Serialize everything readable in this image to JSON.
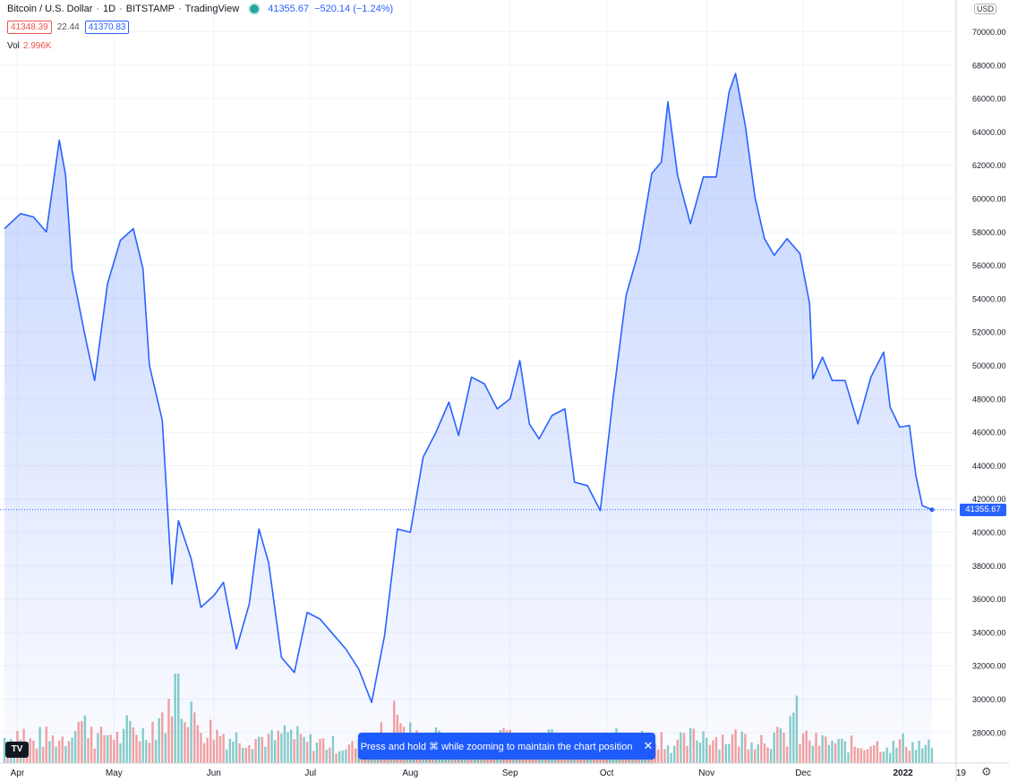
{
  "header": {
    "symbol": "Bitcoin / U.S. Dollar",
    "interval": "1D",
    "exchange": "BITSTAMP",
    "source": "TradingView",
    "last_price": "41355.67",
    "change": "−520.14 (−1.24%)",
    "bid": "41348.39",
    "spread": "22.44",
    "ask": "41370.83",
    "vol_label": "Vol",
    "vol_value": "2.996K",
    "currency": "USD",
    "price_tag": "41355.67"
  },
  "toast": {
    "message": "Press and hold ⌘ while zooming to maintain the chart position",
    "close": "✕"
  },
  "logo": "TV",
  "colors": {
    "line": "#2962ff",
    "area": "#2962ff",
    "up": "#26a69a",
    "down": "#ef5350",
    "grid": "#f0f3fa"
  },
  "chart_data": {
    "type": "area",
    "x_start": "2021-03-28",
    "x_end": "2022-01-10",
    "ylim": [
      26000,
      72000
    ],
    "grid": true,
    "ticks_y": [
      "70000.00",
      "68000.00",
      "66000.00",
      "64000.00",
      "62000.00",
      "60000.00",
      "58000.00",
      "56000.00",
      "54000.00",
      "52000.00",
      "50000.00",
      "48000.00",
      "46000.00",
      "44000.00",
      "42000.00",
      "40000.00",
      "38000.00",
      "36000.00",
      "34000.00",
      "32000.00",
      "30000.00",
      "28000.00"
    ],
    "ticks_x": [
      {
        "date": "2021-04-01",
        "label": "Apr"
      },
      {
        "date": "2021-05-01",
        "label": "May"
      },
      {
        "date": "2021-06-01",
        "label": "Jun"
      },
      {
        "date": "2021-07-01",
        "label": "Jul"
      },
      {
        "date": "2021-08-01",
        "label": "Aug"
      },
      {
        "date": "2021-09-01",
        "label": "Sep"
      },
      {
        "date": "2021-10-01",
        "label": "Oct"
      },
      {
        "date": "2021-11-01",
        "label": "Nov"
      },
      {
        "date": "2021-12-01",
        "label": "Dec"
      },
      {
        "date": "2022-01-01",
        "label": "2022"
      },
      {
        "date": "2022-01-19",
        "label": "19"
      }
    ],
    "series": [
      {
        "dates": [
          "2021-03-28",
          "2021-04-02",
          "2021-04-06",
          "2021-04-10",
          "2021-04-14",
          "2021-04-16",
          "2021-04-18",
          "2021-04-22",
          "2021-04-25",
          "2021-04-29",
          "2021-05-03",
          "2021-05-07",
          "2021-05-10",
          "2021-05-12",
          "2021-05-16",
          "2021-05-19",
          "2021-05-21",
          "2021-05-25",
          "2021-05-28",
          "2021-06-01",
          "2021-06-04",
          "2021-06-08",
          "2021-06-12",
          "2021-06-15",
          "2021-06-18",
          "2021-06-22",
          "2021-06-26",
          "2021-06-30",
          "2021-07-04",
          "2021-07-08",
          "2021-07-12",
          "2021-07-16",
          "2021-07-20",
          "2021-07-24",
          "2021-07-28",
          "2021-08-01",
          "2021-08-05",
          "2021-08-09",
          "2021-08-13",
          "2021-08-16",
          "2021-08-20",
          "2021-08-24",
          "2021-08-28",
          "2021-09-01",
          "2021-09-04",
          "2021-09-07",
          "2021-09-10",
          "2021-09-14",
          "2021-09-18",
          "2021-09-21",
          "2021-09-25",
          "2021-09-29",
          "2021-10-03",
          "2021-10-07",
          "2021-10-11",
          "2021-10-15",
          "2021-10-18",
          "2021-10-20",
          "2021-10-23",
          "2021-10-27",
          "2021-10-31",
          "2021-11-04",
          "2021-11-08",
          "2021-11-10",
          "2021-11-13",
          "2021-11-16",
          "2021-11-19",
          "2021-11-22",
          "2021-11-26",
          "2021-11-30",
          "2021-12-03",
          "2021-12-04",
          "2021-12-07",
          "2021-12-10",
          "2021-12-14",
          "2021-12-18",
          "2021-12-22",
          "2021-12-26",
          "2021-12-28",
          "2021-12-31",
          "2022-01-03",
          "2022-01-05",
          "2022-01-07",
          "2022-01-10"
        ],
        "values": [
          58200,
          59100,
          58900,
          58000,
          63500,
          61400,
          55700,
          51800,
          49100,
          54900,
          57500,
          58200,
          55800,
          50000,
          46700,
          36900,
          40700,
          38400,
          35500,
          36200,
          37000,
          33000,
          35700,
          40200,
          38200,
          32500,
          31600,
          35200,
          34800,
          33900,
          33000,
          31800,
          29800,
          33800,
          40200,
          40000,
          44500,
          46000,
          47800,
          45800,
          49300,
          48900,
          47400,
          48000,
          50300,
          46500,
          45600,
          47000,
          47400,
          43000,
          42800,
          41300,
          48100,
          54200,
          56900,
          61500,
          62200,
          65800,
          61400,
          58500,
          61300,
          61300,
          66400,
          67500,
          64400,
          60100,
          57600,
          56600,
          57600,
          56700,
          53700,
          49200,
          50500,
          49100,
          49100,
          46500,
          49300,
          50800,
          47500,
          46300,
          46400,
          43400,
          41600,
          41355.67
        ]
      }
    ],
    "volume": {
      "note": "daily volume, relative",
      "values": [
        0.3,
        0.35,
        0.25,
        0.3,
        0.28,
        0.3,
        0.5,
        0.45,
        0.3,
        0.35,
        0.3,
        0.4,
        0.35,
        0.45,
        0.55,
        1.0,
        0.7,
        0.45,
        0.4,
        0.35,
        0.3,
        0.3,
        0.3,
        0.3,
        0.28,
        0.35,
        0.3,
        0.25,
        0.25,
        0.22,
        0.2,
        0.2,
        0.2,
        0.25,
        0.35,
        0.55,
        0.35,
        0.3,
        0.3,
        0.3,
        0.25,
        0.25,
        0.25,
        0.22,
        0.3,
        0.4,
        0.3,
        0.25,
        0.25,
        0.3,
        0.25,
        0.25,
        0.3,
        0.3,
        0.3,
        0.3,
        0.28,
        0.3,
        0.25,
        0.3,
        0.22,
        0.25,
        0.3,
        0.35,
        0.3,
        0.3,
        0.3,
        0.3,
        0.3,
        0.3,
        0.3,
        0.55,
        0.3,
        0.25,
        0.25,
        0.22,
        0.22,
        0.2,
        0.25,
        0.22,
        0.2,
        0.25,
        0.22,
        0.2
      ]
    }
  }
}
